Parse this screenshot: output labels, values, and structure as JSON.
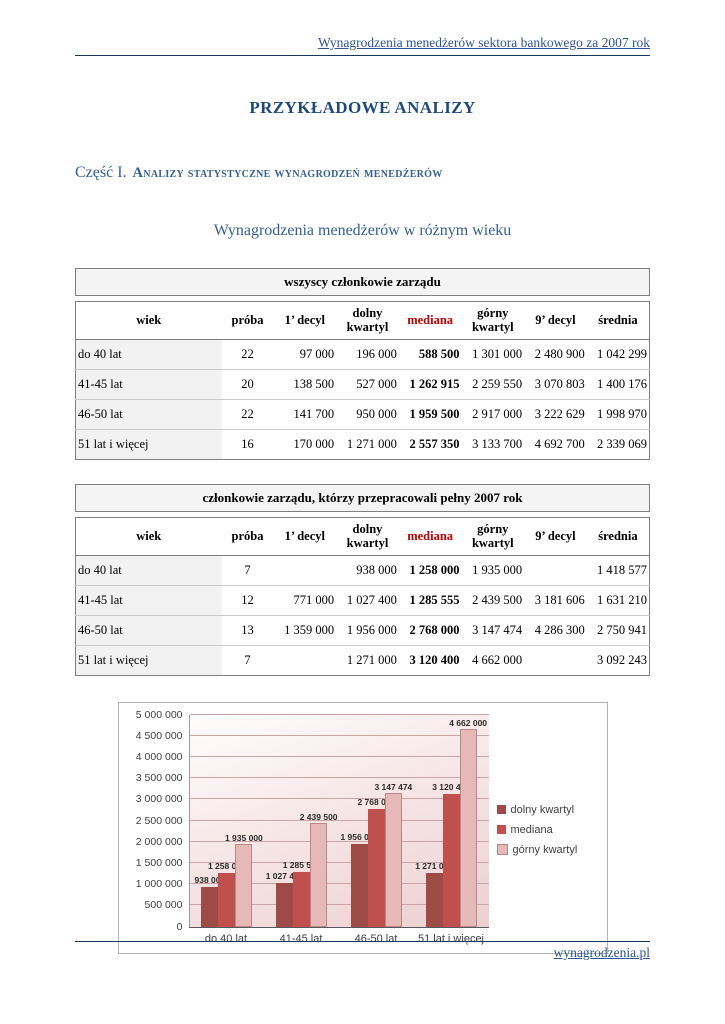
{
  "page": {
    "header_link": "Wynagrodzenia menedżerów sektora bankowego za 2007 rok",
    "title": "PRZYKŁADOWE ANALIZY",
    "section_prefix": "Część I.",
    "section_title": "Analizy statystyczne wynagrodzeń menedżerów",
    "subtitle": "Wynagrodzenia menedżerów w różnym wieku",
    "footer_link": "wynagrodzenia.pl"
  },
  "colors": {
    "title_blue": "#1f497d",
    "heading_blue": "#365f91",
    "link_blue": "#2e5396",
    "mediana_red": "#c00000"
  },
  "tables": [
    {
      "caption": "wszyscy członkowie zarządu",
      "columns": [
        "wiek",
        "próba",
        "1’ decyl",
        "dolny kwartyl",
        "mediana",
        "górny kwartyl",
        "9’ decyl",
        "średnia"
      ],
      "rows": [
        [
          "do 40 lat",
          "22",
          "97 000",
          "196 000",
          "588 500",
          "1 301 000",
          "2 480 900",
          "1 042 299"
        ],
        [
          "41-45 lat",
          "20",
          "138 500",
          "527 000",
          "1 262 915",
          "2 259 550",
          "3 070 803",
          "1 400 176"
        ],
        [
          "46-50 lat",
          "22",
          "141 700",
          "950 000",
          "1 959 500",
          "2 917 000",
          "3 222 629",
          "1 998 970"
        ],
        [
          "51 lat i więcej",
          "16",
          "170 000",
          "1 271 000",
          "2 557 350",
          "3 133 700",
          "4 692 700",
          "2 339 069"
        ]
      ]
    },
    {
      "caption": "członkowie zarządu, którzy przepracowali pełny 2007 rok",
      "columns": [
        "wiek",
        "próba",
        "1’ decyl",
        "dolny kwartyl",
        "mediana",
        "górny kwartyl",
        "9’ decyl",
        "średnia"
      ],
      "rows": [
        [
          "do 40 lat",
          "7",
          "",
          "938 000",
          "1 258 000",
          "1 935 000",
          "",
          "1 418 577"
        ],
        [
          "41-45 lat",
          "12",
          "771 000",
          "1 027 400",
          "1 285 555",
          "2 439 500",
          "3 181 606",
          "1 631 210"
        ],
        [
          "46-50 lat",
          "13",
          "1 359 000",
          "1 956 000",
          "2 768 000",
          "3 147 474",
          "4 286 300",
          "2 750 941"
        ],
        [
          "51 lat i więcej",
          "7",
          "",
          "1 271 000",
          "3 120 400",
          "4 662 000",
          "",
          "3 092 243"
        ]
      ]
    }
  ],
  "chart_data": {
    "type": "bar",
    "categories": [
      "do 40 lat",
      "41-45 lat",
      "46-50 lat",
      "51 lat i więcej"
    ],
    "series": [
      {
        "name": "dolny kwartyl",
        "color": "#9e4b47",
        "values": [
          938000,
          1027400,
          1956000,
          1271000
        ],
        "labels": [
          "938 000",
          "1 027 400",
          "1 956 000",
          "1 271 000"
        ]
      },
      {
        "name": "mediana",
        "color": "#c0504d",
        "values": [
          1258000,
          1285555,
          2768000,
          3120400
        ],
        "labels": [
          "1 258 000",
          "1 285 555",
          "2 768 000",
          "3 120 400"
        ]
      },
      {
        "name": "górny kwartyl",
        "color": "#e6b9b8",
        "border": "#b98886",
        "values": [
          1935000,
          2439500,
          3147474,
          4662000
        ],
        "labels": [
          "1 935 000",
          "2 439 500",
          "3 147 474",
          "4 662 000"
        ]
      }
    ],
    "title": "",
    "xlabel": "",
    "ylabel": "",
    "ylim": [
      0,
      5000000
    ],
    "ytick_step": 500000,
    "ytick_labels": [
      "0",
      "500 000",
      "1 000 000",
      "1 500 000",
      "2 000 000",
      "2 500 000",
      "3 000 000",
      "3 500 000",
      "4 000 000",
      "4 500 000",
      "5 000 000"
    ],
    "grid": true,
    "legend_position": "right"
  }
}
